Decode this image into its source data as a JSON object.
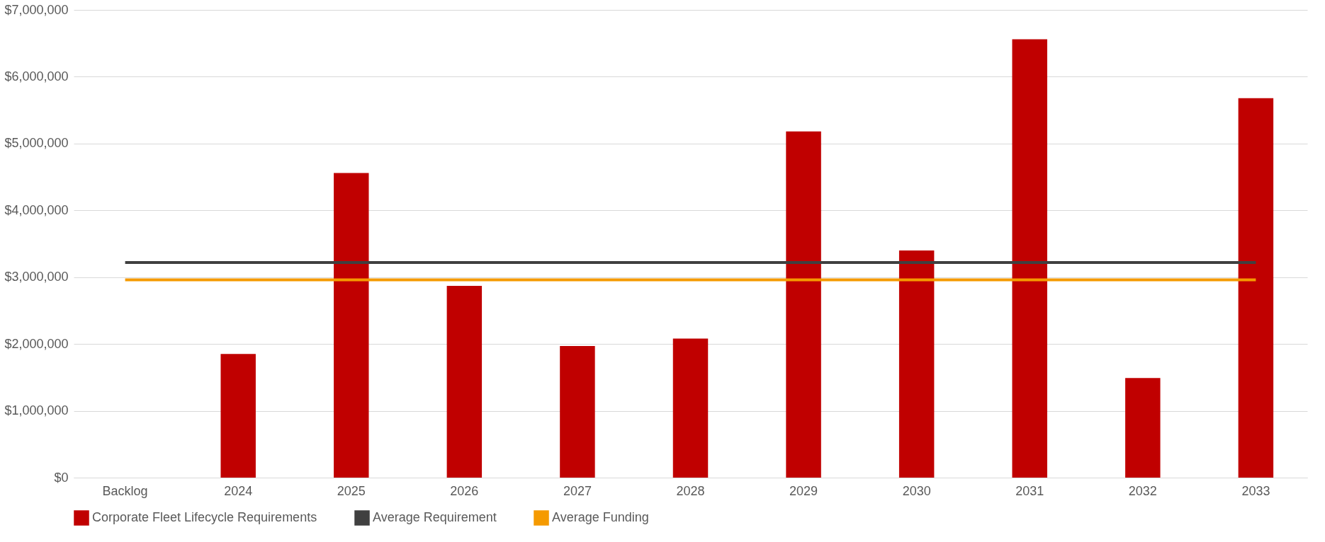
{
  "chart_data": {
    "type": "bar",
    "categories": [
      "Backlog",
      "2024",
      "2025",
      "2026",
      "2027",
      "2028",
      "2029",
      "2030",
      "2031",
      "2032",
      "2033"
    ],
    "series": [
      {
        "name": "Corporate Fleet Lifecycle Requirements",
        "color": "#c00000",
        "values": [
          null,
          1850000,
          4560000,
          2870000,
          1970000,
          2080000,
          5180000,
          3400000,
          6560000,
          1490000,
          5680000
        ]
      },
      {
        "name": "Average Requirement",
        "type": "line",
        "color": "#404040",
        "values": [
          3220000,
          3220000,
          3220000,
          3220000,
          3220000,
          3220000,
          3220000,
          3220000,
          3220000,
          3220000,
          3220000
        ]
      },
      {
        "name": "Average Funding",
        "type": "line",
        "color": "#f59a00",
        "values": [
          2960000,
          2960000,
          2960000,
          2960000,
          2960000,
          2960000,
          2960000,
          2960000,
          2960000,
          2960000,
          2960000
        ]
      }
    ],
    "ylim": [
      0,
      7000000
    ],
    "yticks": [
      {
        "value": 0,
        "label": "$0"
      },
      {
        "value": 1000000,
        "label": "$1,000,000"
      },
      {
        "value": 2000000,
        "label": "$2,000,000"
      },
      {
        "value": 3000000,
        "label": "$3,000,000"
      },
      {
        "value": 4000000,
        "label": "$4,000,000"
      },
      {
        "value": 5000000,
        "label": "$5,000,000"
      },
      {
        "value": 6000000,
        "label": "$6,000,000"
      },
      {
        "value": 7000000,
        "label": "$7,000,000"
      }
    ],
    "grid": "y",
    "legend": "bottom"
  }
}
